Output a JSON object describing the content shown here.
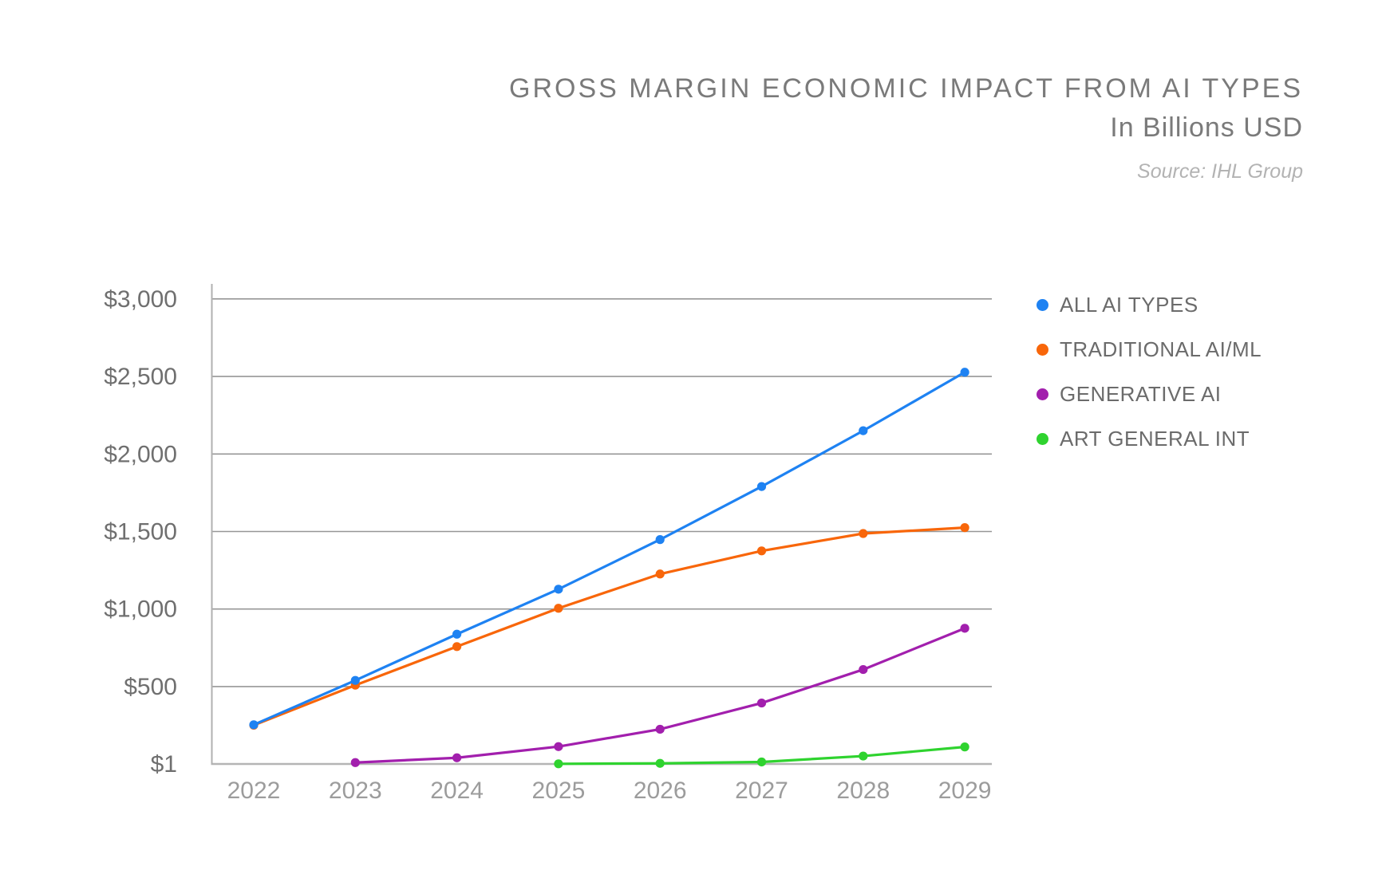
{
  "header": {
    "title": "GROSS MARGIN ECONOMIC IMPACT FROM AI TYPES",
    "subtitle": "In Billions USD",
    "source": "Source: IHL Group"
  },
  "legend": {
    "position": "right",
    "items": [
      {
        "label": "ALL AI TYPES",
        "color": "#1E82F2"
      },
      {
        "label": "TRADITIONAL AI/ML",
        "color": "#F8660A"
      },
      {
        "label": "GENERATIVE AI",
        "color": "#A21FAD"
      },
      {
        "label": "ART GENERAL INT",
        "color": "#2FD32F"
      }
    ]
  },
  "chart_data": {
    "type": "line",
    "title": "GROSS MARGIN ECONOMIC IMPACT FROM AI TYPES",
    "subtitle": "In Billions USD",
    "source": "Source: IHL Group",
    "categories": [
      "2022",
      "2023",
      "2024",
      "2025",
      "2026",
      "2027",
      "2028",
      "2029"
    ],
    "series": [
      {
        "name": "ALL AI TYPES",
        "color": "#1E82F2",
        "values": [
          254,
          540,
          838,
          1128,
          1448,
          1790,
          2150,
          2527
        ]
      },
      {
        "name": "TRADITIONAL AI/ML",
        "color": "#F8660A",
        "values": [
          251,
          509,
          758,
          1005,
          1226,
          1375,
          1487,
          1525
        ]
      },
      {
        "name": "GENERATIVE AI",
        "color": "#A21FAD",
        "values": [
          null,
          10,
          41,
          113,
          225,
          394,
          610,
          876
        ]
      },
      {
        "name": "ART GENERAL INT",
        "color": "#2FD32F",
        "values": [
          null,
          null,
          null,
          2,
          5,
          14,
          52,
          111
        ]
      }
    ],
    "y_axis": {
      "range": [
        1,
        3000
      ],
      "ticks": [
        {
          "value": 1,
          "label": "$1"
        },
        {
          "value": 500,
          "label": "$500"
        },
        {
          "value": 1000,
          "label": "$1,000"
        },
        {
          "value": 1500,
          "label": "$1,500"
        },
        {
          "value": 2000,
          "label": "$2,000"
        },
        {
          "value": 2500,
          "label": "$2,500"
        },
        {
          "value": 3000,
          "label": "$3,000"
        }
      ]
    },
    "x_axis": {
      "ticks": [
        "2022",
        "2023",
        "2024",
        "2025",
        "2026",
        "2027",
        "2028",
        "2029"
      ]
    },
    "grid": true,
    "legend_position": "right",
    "style": {
      "gridline_color": "#979797",
      "baseline_color": "#b5b5b5",
      "axis_color": "#b0b0b0",
      "y_tick_color": "#6f6f6f",
      "x_tick_color": "#9c9c9c"
    }
  }
}
